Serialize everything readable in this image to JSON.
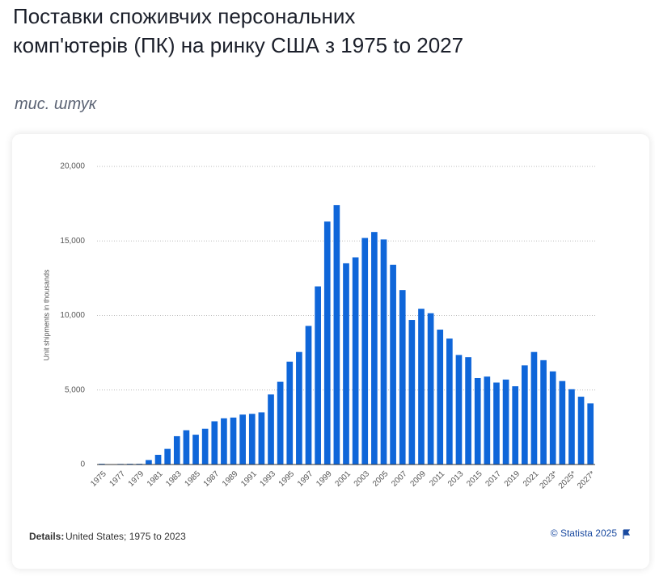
{
  "chart_data": {
    "type": "bar",
    "title": "Поставки споживчих персональних комп'ютерів (ПК) на ринку США з 1975 to 2027",
    "subtitle": "тис. штук",
    "y_label": "Unit shipments in thousands",
    "details_label": "Details:",
    "details_text": "United States; 1975 to 2023",
    "source": "© Statista 2025",
    "color": "#0f66d9",
    "categories": [
      "1975",
      null,
      "1977",
      null,
      "1979",
      null,
      "1981",
      null,
      "1983",
      null,
      "1985",
      null,
      "1987",
      null,
      "1989",
      null,
      "1991",
      null,
      "1993",
      null,
      "1995",
      null,
      "1997",
      null,
      "1999",
      null,
      "2001",
      null,
      "2003",
      null,
      "2005",
      null,
      "2007",
      null,
      "2009",
      null,
      "2011",
      null,
      "2013",
      null,
      "2015",
      null,
      "2017",
      null,
      "2019",
      null,
      "2021",
      null,
      "2023*",
      null,
      "2025*",
      null,
      "2027*"
    ],
    "values": [
      50,
      20,
      40,
      50,
      50,
      300,
      650,
      1050,
      1900,
      2300,
      2000,
      2400,
      2900,
      3100,
      3150,
      3350,
      3400,
      3500,
      4700,
      5550,
      6900,
      7550,
      9300,
      11950,
      16300,
      17400,
      13500,
      13900,
      15200,
      15600,
      15100,
      13400,
      11700,
      9700,
      10450,
      10150,
      9050,
      8450,
      7350,
      7200,
      5800,
      5900,
      5500,
      5700,
      5250,
      6650,
      7550,
      7000,
      6250,
      5600,
      5050,
      4550,
      4100
    ],
    "ylim": [
      0,
      20000
    ],
    "yticks": [
      0,
      {
        "value": 5000,
        "label": "5,000"
      },
      {
        "value": 10000,
        "label": "10,000"
      },
      {
        "value": 15000,
        "label": "15,000"
      },
      {
        "value": 20000,
        "label": "20,000"
      }
    ],
    "grid": true
  }
}
